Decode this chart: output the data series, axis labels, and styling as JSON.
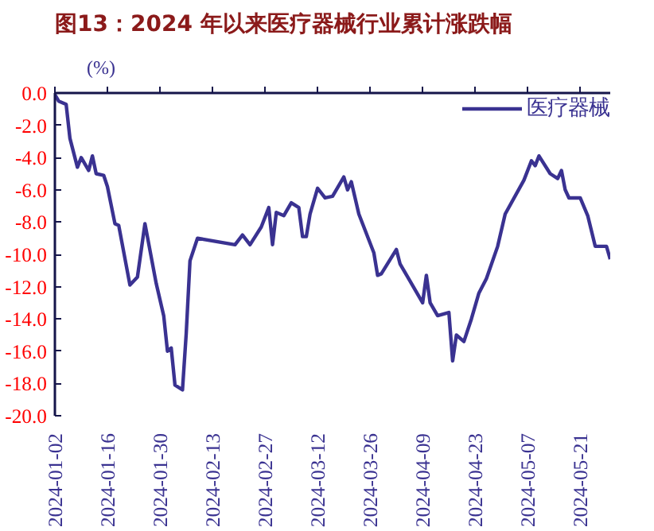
{
  "chart_data": {
    "type": "line",
    "title": "图13：2024 年以来医疗器械行业累计涨跌幅",
    "ylabel": "(%)",
    "x": [
      "2024-01-02",
      "2024-01-03",
      "2024-01-05",
      "2024-01-06",
      "2024-01-08",
      "2024-01-09",
      "2024-01-11",
      "2024-01-12",
      "2024-01-13",
      "2024-01-15",
      "2024-01-16",
      "2024-01-18",
      "2024-01-19",
      "2024-01-22",
      "2024-01-24",
      "2024-01-26",
      "2024-01-29",
      "2024-01-31",
      "2024-02-01",
      "2024-02-02",
      "2024-02-03",
      "2024-02-05",
      "2024-02-06",
      "2024-02-07",
      "2024-02-09",
      "2024-02-19",
      "2024-02-21",
      "2024-02-23",
      "2024-02-26",
      "2024-02-28",
      "2024-02-29",
      "2024-03-01",
      "2024-03-03",
      "2024-03-05",
      "2024-03-07",
      "2024-03-08",
      "2024-03-09",
      "2024-03-10",
      "2024-03-12",
      "2024-03-14",
      "2024-03-16",
      "2024-03-19",
      "2024-03-20",
      "2024-03-21",
      "2024-03-23",
      "2024-03-27",
      "2024-03-28",
      "2024-03-29",
      "2024-04-02",
      "2024-04-03",
      "2024-04-09",
      "2024-04-10",
      "2024-04-11",
      "2024-04-13",
      "2024-04-16",
      "2024-04-17",
      "2024-04-18",
      "2024-04-20",
      "2024-04-22",
      "2024-04-24",
      "2024-04-26",
      "2024-04-29",
      "2024-05-01",
      "2024-05-06",
      "2024-05-08",
      "2024-05-09",
      "2024-05-10",
      "2024-05-13",
      "2024-05-15",
      "2024-05-16",
      "2024-05-17",
      "2024-05-18",
      "2024-05-21",
      "2024-05-23",
      "2024-05-25",
      "2024-05-28",
      "2024-05-29"
    ],
    "series": [
      {
        "name": "医疗器械",
        "color": "#3a3291",
        "values": [
          -0.1,
          -0.5,
          -0.7,
          -2.8,
          -4.6,
          -4.0,
          -4.8,
          -3.9,
          -5.0,
          -5.1,
          -5.8,
          -8.1,
          -8.2,
          -11.9,
          -11.4,
          -8.1,
          -11.8,
          -13.8,
          -16.0,
          -15.8,
          -18.1,
          -18.4,
          -14.9,
          -10.4,
          -9.0,
          -9.4,
          -8.8,
          -9.4,
          -8.3,
          -7.1,
          -9.4,
          -7.4,
          -7.6,
          -6.8,
          -7.1,
          -8.9,
          -8.9,
          -7.5,
          -5.9,
          -6.5,
          -6.4,
          -5.2,
          -6.0,
          -5.5,
          -7.5,
          -9.9,
          -11.3,
          -11.2,
          -9.7,
          -10.6,
          -13.0,
          -11.3,
          -13.0,
          -13.8,
          -13.6,
          -16.6,
          -15.0,
          -15.4,
          -14.0,
          -12.4,
          -11.5,
          -9.5,
          -7.5,
          -5.4,
          -4.2,
          -4.5,
          -3.9,
          -5.0,
          -5.3,
          -4.8,
          -6.0,
          -6.5,
          -6.5,
          -7.6,
          -9.5,
          -9.5,
          -10.3
        ]
      }
    ],
    "xlim": [
      "2024-01-02",
      "2024-05-29"
    ],
    "xticks": [
      "2024-01-02",
      "2024-01-16",
      "2024-01-30",
      "2024-02-13",
      "2024-02-27",
      "2024-03-12",
      "2024-03-26",
      "2024-04-09",
      "2024-04-23",
      "2024-05-07",
      "2024-05-21"
    ],
    "ylim": [
      -20,
      0
    ],
    "yticks": [
      {
        "value": 0,
        "label": "0.0"
      },
      {
        "value": -2,
        "label": "-2.0"
      },
      {
        "value": -4,
        "label": "-4.0"
      },
      {
        "value": -6,
        "label": "-6.0"
      },
      {
        "value": -8,
        "label": "-8.0"
      },
      {
        "value": -10,
        "label": "-10.0"
      },
      {
        "value": -12,
        "label": "-12.0"
      },
      {
        "value": -14,
        "label": "-14.0"
      },
      {
        "value": -16,
        "label": "-16.0"
      },
      {
        "value": -18,
        "label": "-18.0"
      },
      {
        "value": -20,
        "label": "-20.0"
      }
    ],
    "grid": false,
    "legend": "top right",
    "marker": "none",
    "line_style": "solid"
  }
}
